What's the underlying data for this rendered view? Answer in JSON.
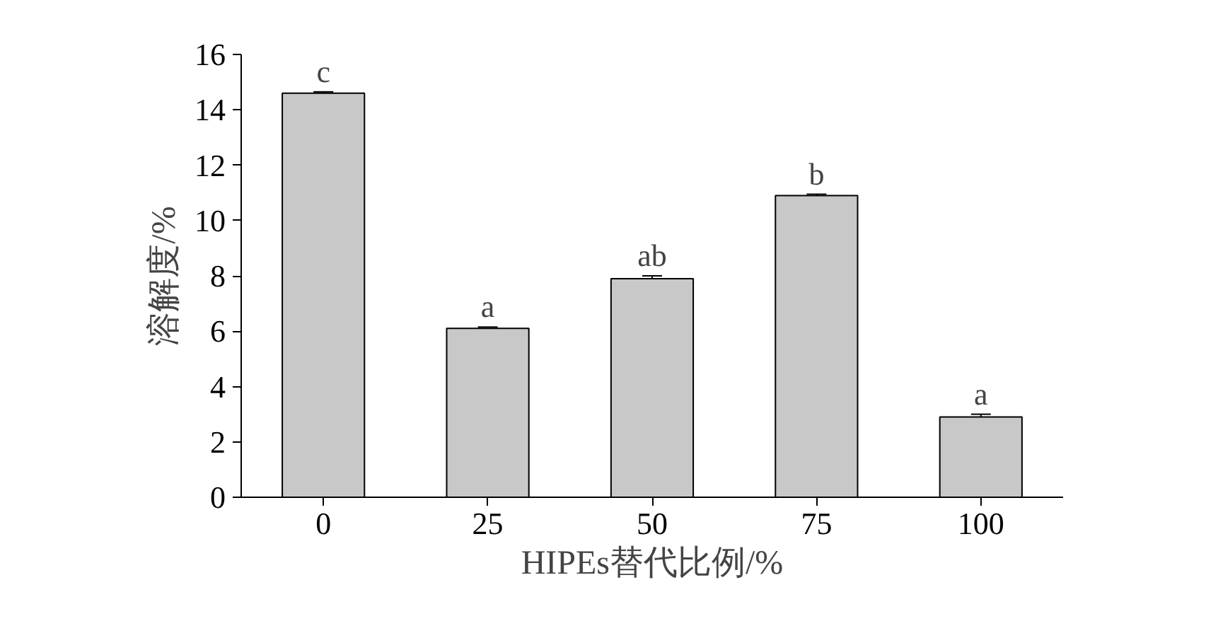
{
  "chart_data": {
    "type": "bar",
    "xlabel": "HIPEs替代比例/%",
    "ylabel": "溶解度/%",
    "categories": [
      "0",
      "25",
      "50",
      "75",
      "100"
    ],
    "values": [
      14.6,
      6.1,
      7.9,
      10.9,
      2.9
    ],
    "errors": [
      0.05,
      0.05,
      0.1,
      0.05,
      0.1
    ],
    "color": "#c8c8c8",
    "ylim": [
      0,
      16
    ],
    "yticks": [
      0,
      2,
      4,
      6,
      8,
      10,
      12,
      14,
      16
    ],
    "grid": false,
    "annotations": [
      {
        "text": "c",
        "x": "0",
        "y": 14.65
      },
      {
        "text": "a",
        "x": "25",
        "y": 6.15
      },
      {
        "text": "ab",
        "x": "50",
        "y": 8.0
      },
      {
        "text": "b",
        "x": "75",
        "y": 10.95
      },
      {
        "text": "a",
        "x": "100",
        "y": 3.0
      }
    ]
  }
}
